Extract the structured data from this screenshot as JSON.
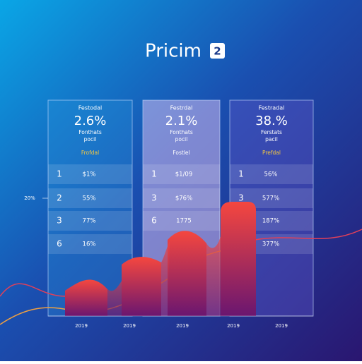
{
  "header": {
    "title": "Pricim",
    "badge": "2"
  },
  "axis_label": "20%",
  "cards": [
    {
      "label": "Festodal",
      "value": "2.6%",
      "note": [
        "Fonthats",
        "pocil"
      ],
      "tag": "Frofdal",
      "highlight": true,
      "rows": [
        {
          "rank": "1",
          "value": "$1%"
        },
        {
          "rank": "2",
          "value": "55%"
        },
        {
          "rank": "3",
          "value": "77%"
        },
        {
          "rank": "6",
          "value": "16%"
        }
      ]
    },
    {
      "label": "Festrdal",
      "value": "2.1%",
      "note": [
        "Fonthats",
        "pocil"
      ],
      "tag": "Fostlel",
      "highlight": false,
      "rows": [
        {
          "rank": "1",
          "value": "$1/09"
        },
        {
          "rank": "3",
          "value": "$76%"
        },
        {
          "rank": "6",
          "value": "1775"
        }
      ]
    },
    {
      "label": "Festradal",
      "value": "38.%",
      "note": [
        "Ferstats",
        "pacil"
      ],
      "tag": "Prefdal",
      "highlight": true,
      "rows": [
        {
          "rank": "1",
          "value": "56%"
        },
        {
          "rank": "3",
          "value": "577%"
        },
        {
          "value": "187%"
        },
        {
          "value": "377%"
        }
      ]
    }
  ],
  "x_labels": [
    "2019",
    "2019",
    "2019",
    "2019",
    "2019"
  ]
}
